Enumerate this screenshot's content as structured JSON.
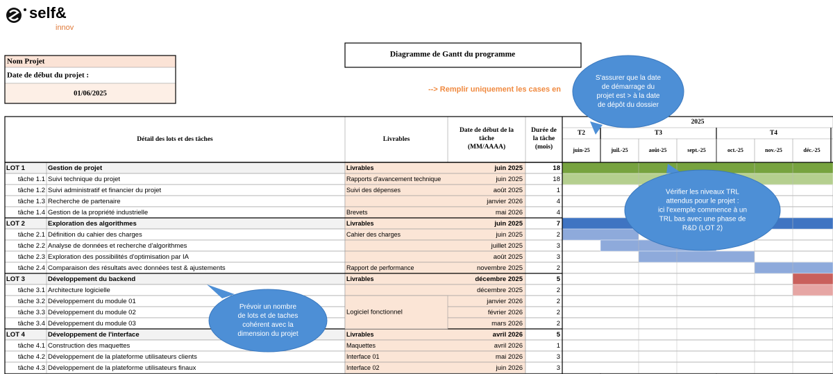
{
  "logo": {
    "name": "self&",
    "sub": "innov"
  },
  "project": {
    "name_label": "Nom Projet",
    "start_label": "Date de début du projet :",
    "start": "01/06/2025"
  },
  "gantt_title": "Diagramme de Gantt du programme",
  "instruction": "--> Remplir uniquement les cases en",
  "table": {
    "headers": {
      "detail": "Détail des lots et des tâches",
      "livrables": "Livrables",
      "start": [
        "Date de début de la",
        "tâche",
        "(MM/AAAA)"
      ],
      "duration": [
        "Durée de",
        "la tâche",
        "(mois)"
      ]
    },
    "year": "2025",
    "quarters": [
      "T2",
      "T3",
      "T4"
    ],
    "months": [
      "juin-25",
      "juil.-25",
      "août-25",
      "sept.-25",
      "oct.-25",
      "nov.-25",
      "déc.-25"
    ],
    "rows": [
      {
        "code": "LOT 1",
        "name": "Gestion de projet",
        "livrable": "Livrables",
        "start": "juin 2025",
        "duration": 18
      },
      {
        "code": "tâche 1.1",
        "name": "Suivi technique du projet",
        "livrable": "Rapports d'avancement technique",
        "start": "juin 2025",
        "duration": 18
      },
      {
        "code": "tâche 1.2",
        "name": "Suivi administratif et financier du projet",
        "livrable": "Suivi des dépenses",
        "start": "août 2025",
        "duration": 1
      },
      {
        "code": "tâche 1.3",
        "name": "Recherche de partenaire",
        "livrable": null,
        "start": "janvier 2026",
        "duration": 4
      },
      {
        "code": "tâche 1.4",
        "name": "Gestion de la propriété industrielle",
        "livrable": "Brevets",
        "start": "mai 2026",
        "duration": 4
      },
      {
        "code": "LOT 2",
        "name": "Exploration des algorithmes",
        "livrable": "Livrables",
        "start": "juin 2025",
        "duration": 7
      },
      {
        "code": "tâche 2.1",
        "name": "Définition du cahier des charges",
        "livrable": "Cahier des charges",
        "start": "juin 2025",
        "duration": 2
      },
      {
        "code": "tâche 2.2",
        "name": "Analyse de données et recherche d'algorithmes",
        "livrable": null,
        "start": "juillet 2025",
        "duration": 3
      },
      {
        "code": "tâche 2.3",
        "name": "Exploration des possibilités d'optimisation par IA",
        "livrable": null,
        "start": "août 2025",
        "duration": 3
      },
      {
        "code": "tâche 2.4",
        "name": "Comparaison des résultats avec données test & ajustements",
        "livrable": "Rapport de performance",
        "start": "novembre 2025",
        "duration": 2
      },
      {
        "code": "LOT 3",
        "name": "Développement du backend",
        "livrable": "Livrables",
        "start": "décembre 2025",
        "duration": 5
      },
      {
        "code": "tâche 3.1",
        "name": "Architecture logicielle",
        "livrable": null,
        "start": "décembre 2025",
        "duration": 2
      },
      {
        "code": "tâche 3.2",
        "name": "Développement du module 01",
        "livrable": "Logiciel fonctionnel",
        "start": "janvier 2026",
        "duration": 2
      },
      {
        "code": "tâche 3.3",
        "name": "Développement du module 02",
        "livrable": null,
        "start": "février 2026",
        "duration": 2
      },
      {
        "code": "tâche 3.4",
        "name": "Développement du module 03",
        "livrable": null,
        "start": "mars 2026",
        "duration": 2
      },
      {
        "code": "LOT 4",
        "name": "Développement de l'interface",
        "livrable": "Livrables",
        "start": "avril 2026",
        "duration": 5
      },
      {
        "code": "tâche 4.1",
        "name": "Construction des maquettes",
        "livrable": "Maquettes",
        "start": "avril 2026",
        "duration": 1
      },
      {
        "code": "tâche 4.2",
        "name": "Développement de la plateforme utilisateurs clients",
        "livrable": "Interface 01",
        "start": "mai 2026",
        "duration": 3
      },
      {
        "code": "tâche 4.3",
        "name": "Développement de la plateforme utilisateurs finaux",
        "livrable": "Interface 02",
        "start": "juin 2026",
        "duration": 3
      }
    ]
  },
  "callouts": [
    [
      "S'assurer que la date",
      "de démarrage du",
      "projet est > à la date",
      "de dépôt du dossier"
    ],
    [
      "Vérifier les niveaux TRL",
      "attendus pour le projet :",
      "ici l'exemple commence à un",
      "TRL bas avec une phase de",
      "R&D (LOT 2)"
    ],
    [
      "Prévoir un nombre",
      "de lots et de taches",
      "cohérent avec la",
      "dimension du projet"
    ]
  ]
}
